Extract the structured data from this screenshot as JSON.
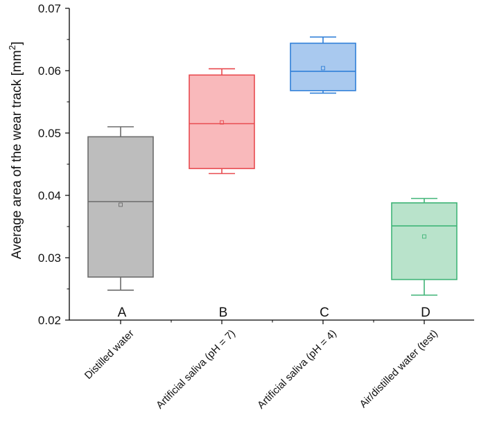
{
  "chart_data": {
    "type": "box",
    "title": "",
    "xlabel": "",
    "ylabel": "Average area of the wear track [mm",
    "ylabel_superscript": "2",
    "ylabel_suffix": "]",
    "ylim": [
      0.02,
      0.07
    ],
    "yticks": [
      "0.02",
      "0.03",
      "0.04",
      "0.05",
      "0.06",
      "0.07"
    ],
    "grid": false,
    "categories": [
      "Distilled water",
      "Artificial saliva (pH = 7)",
      "Artificial saliva (pH = 4)",
      "Air/distilled water (test)"
    ],
    "series": [
      {
        "name": "Distilled water",
        "letter": "A",
        "whisker_low": 0.0248,
        "q1": 0.0269,
        "median": 0.039,
        "q3": 0.0494,
        "whisker_high": 0.051,
        "mean": 0.0385,
        "stroke": "#6b6b6b",
        "fill": "#bdbdbd"
      },
      {
        "name": "Artificial saliva (pH = 7)",
        "letter": "B",
        "whisker_low": 0.0435,
        "q1": 0.0443,
        "median": 0.0515,
        "q3": 0.0593,
        "whisker_high": 0.0603,
        "mean": 0.0517,
        "stroke": "#e84a4f",
        "fill": "#f9b9bb"
      },
      {
        "name": "Artificial saliva (pH = 4)",
        "letter": "C",
        "whisker_low": 0.0564,
        "q1": 0.0568,
        "median": 0.0599,
        "q3": 0.0644,
        "whisker_high": 0.0654,
        "mean": 0.0604,
        "stroke": "#2f7fd8",
        "fill": "#a9c9ef"
      },
      {
        "name": "Air/distilled water (test)",
        "letter": "D",
        "whisker_low": 0.024,
        "q1": 0.0265,
        "median": 0.0351,
        "q3": 0.0388,
        "whisker_high": 0.0395,
        "mean": 0.0334,
        "stroke": "#3fb477",
        "fill": "#b9e3cb"
      }
    ]
  }
}
